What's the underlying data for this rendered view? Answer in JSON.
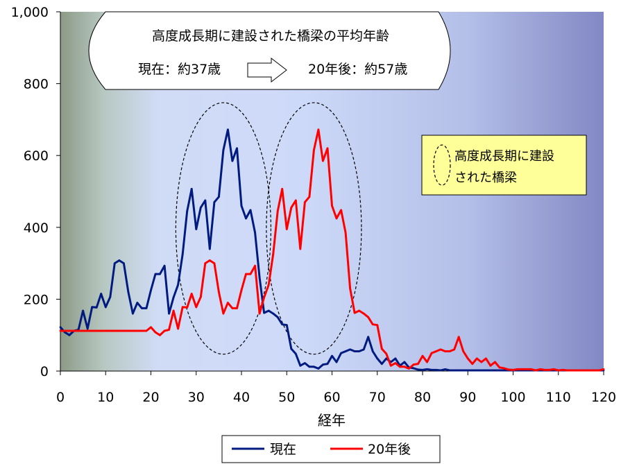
{
  "chart_data": {
    "type": "line",
    "xlabel": "経年",
    "ylabel": "",
    "xlim": [
      0,
      120
    ],
    "ylim": [
      0,
      1000
    ],
    "x_ticks": [
      "0",
      "10",
      "20",
      "30",
      "40",
      "50",
      "60",
      "70",
      "80",
      "90",
      "100",
      "110",
      "120"
    ],
    "y_ticks": [
      "0",
      "200",
      "400",
      "600",
      "800",
      "1,000"
    ],
    "legend": {
      "placement": "bottom"
    },
    "colors": {
      "current": "#001a80",
      "future": "#ff0000"
    },
    "series": [
      {
        "name": "現在",
        "x": [
          0,
          1,
          2,
          3,
          4,
          5,
          6,
          7,
          8,
          9,
          10,
          11,
          12,
          13,
          14,
          15,
          16,
          17,
          18,
          19,
          20,
          21,
          22,
          23,
          24,
          25,
          26,
          27,
          28,
          29,
          30,
          31,
          32,
          33,
          34,
          35,
          36,
          37,
          38,
          39,
          40,
          41,
          42,
          43,
          44,
          45,
          46,
          47,
          48,
          49,
          50,
          51,
          52,
          53,
          54,
          55,
          56,
          57,
          58,
          59,
          60,
          61,
          62,
          63,
          64,
          65,
          66,
          67,
          68,
          69,
          70,
          71,
          72,
          73,
          74,
          75,
          76,
          77,
          78,
          79,
          80,
          81,
          82,
          83,
          84,
          85,
          86,
          87,
          88,
          89,
          90,
          91,
          92,
          93,
          94,
          95,
          96,
          97,
          98,
          99,
          100,
          101,
          102,
          103,
          104,
          105,
          106,
          107,
          108,
          109,
          110,
          111,
          112,
          113,
          114,
          115,
          116,
          117,
          118,
          119,
          120
        ],
        "values": [
          122,
          108,
          100,
          112,
          115,
          168,
          118,
          178,
          177,
          215,
          178,
          206,
          300,
          308,
          300,
          220,
          160,
          190,
          175,
          175,
          225,
          270,
          270,
          293,
          160,
          205,
          240,
          325,
          445,
          507,
          395,
          455,
          475,
          340,
          470,
          485,
          615,
          672,
          585,
          620,
          460,
          425,
          448,
          385,
          260,
          162,
          168,
          160,
          150,
          130,
          128,
          62,
          48,
          15,
          22,
          12,
          12,
          7,
          18,
          20,
          42,
          25,
          50,
          55,
          60,
          55,
          55,
          60,
          95,
          55,
          35,
          20,
          35,
          25,
          35,
          15,
          25,
          10,
          8,
          4,
          3,
          5,
          3,
          3,
          2,
          5,
          2,
          2,
          2,
          2,
          2,
          2,
          2,
          2,
          2,
          2,
          2,
          2,
          2,
          2,
          2,
          2,
          2,
          2,
          2,
          2,
          2,
          2,
          2,
          2,
          2,
          2,
          2,
          2,
          2,
          2,
          2,
          2,
          2,
          2,
          2
        ]
      },
      {
        "name": "20年後",
        "x": [
          0,
          1,
          2,
          3,
          4,
          5,
          6,
          7,
          8,
          9,
          10,
          11,
          12,
          13,
          14,
          15,
          16,
          17,
          18,
          19,
          20,
          21,
          22,
          23,
          24,
          25,
          26,
          27,
          28,
          29,
          30,
          31,
          32,
          33,
          34,
          35,
          36,
          37,
          38,
          39,
          40,
          41,
          42,
          43,
          44,
          45,
          46,
          47,
          48,
          49,
          50,
          51,
          52,
          53,
          54,
          55,
          56,
          57,
          58,
          59,
          60,
          61,
          62,
          63,
          64,
          65,
          66,
          67,
          68,
          69,
          70,
          71,
          72,
          73,
          74,
          75,
          76,
          77,
          78,
          79,
          80,
          81,
          82,
          83,
          84,
          85,
          86,
          87,
          88,
          89,
          90,
          91,
          92,
          93,
          94,
          95,
          96,
          97,
          98,
          99,
          100,
          101,
          102,
          103,
          104,
          105,
          106,
          107,
          108,
          109,
          110,
          111,
          112,
          113,
          114,
          115,
          116,
          117,
          118,
          119,
          120
        ],
        "values": [
          112,
          112,
          112,
          112,
          112,
          112,
          112,
          112,
          112,
          112,
          112,
          112,
          112,
          112,
          112,
          112,
          112,
          112,
          112,
          112,
          122,
          108,
          100,
          112,
          115,
          168,
          118,
          178,
          177,
          215,
          178,
          206,
          300,
          308,
          300,
          220,
          160,
          190,
          175,
          175,
          225,
          270,
          270,
          293,
          160,
          205,
          240,
          325,
          445,
          507,
          395,
          455,
          475,
          340,
          470,
          485,
          615,
          672,
          585,
          620,
          460,
          425,
          448,
          385,
          230,
          162,
          168,
          160,
          150,
          130,
          128,
          62,
          48,
          15,
          22,
          12,
          12,
          7,
          18,
          20,
          42,
          25,
          50,
          55,
          60,
          55,
          55,
          60,
          95,
          55,
          35,
          20,
          35,
          25,
          35,
          15,
          25,
          10,
          8,
          4,
          3,
          5,
          5,
          5,
          5,
          2,
          5,
          3,
          3,
          5,
          2,
          3,
          2,
          2,
          2,
          2,
          2,
          2,
          2,
          2,
          5
        ]
      }
    ],
    "callout": {
      "title": "高度成長期に建設された橋梁の平均年齢",
      "current": "現在：約37歳",
      "future": "20年後：約57歳"
    },
    "note": {
      "line1": "高度成長期に建設",
      "line2": "された橋梁"
    },
    "highlights": [
      {
        "x_center": 36,
        "x_half": 10.5,
        "y_center": 397,
        "y_half": 350
      },
      {
        "x_center": 56,
        "x_half": 10.5,
        "y_center": 397,
        "y_half": 350
      }
    ]
  }
}
